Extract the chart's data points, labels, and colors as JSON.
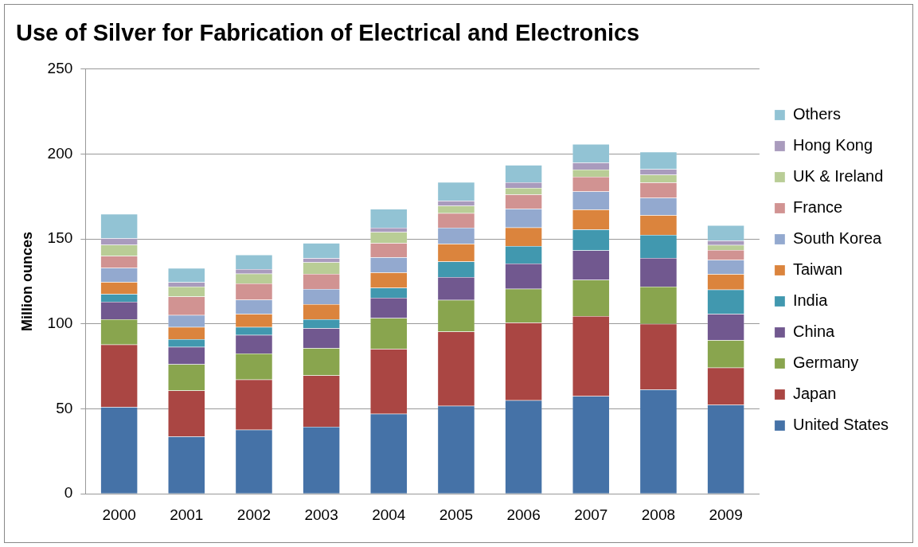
{
  "chart_data": {
    "type": "bar",
    "title": "Use of Silver for Fabrication of Electrical and Electronics",
    "ylabel": "Million ounces",
    "categories": [
      "2000",
      "2001",
      "2002",
      "2003",
      "2004",
      "2005",
      "2006",
      "2007",
      "2008",
      "2009"
    ],
    "stacked": true,
    "ylim": [
      0,
      250
    ],
    "yticks": [
      0,
      50,
      100,
      150,
      200,
      250
    ],
    "grid": "y",
    "legend": "right",
    "series": [
      {
        "name": "United States",
        "color": "#4572a7",
        "values": [
          51.1,
          33.7,
          37.7,
          39.5,
          47.1,
          51.8,
          55.0,
          57.5,
          61.4,
          52.3
        ]
      },
      {
        "name": "Japan",
        "color": "#aa4643",
        "values": [
          36.8,
          27.1,
          29.5,
          30.2,
          38.2,
          43.7,
          45.8,
          47.1,
          38.7,
          22.0
        ]
      },
      {
        "name": "Germany",
        "color": "#89a54e",
        "values": [
          14.8,
          15.4,
          15.4,
          16.1,
          18.1,
          18.6,
          19.9,
          21.3,
          21.9,
          16.1
        ]
      },
      {
        "name": "China",
        "color": "#71588f",
        "values": [
          10.4,
          10.2,
          10.9,
          11.7,
          12.0,
          13.5,
          14.9,
          17.4,
          16.8,
          15.5
        ]
      },
      {
        "name": "India",
        "color": "#4198af",
        "values": [
          4.5,
          4.6,
          4.7,
          5.2,
          5.9,
          9.1,
          10.3,
          12.3,
          13.6,
          14.3
        ]
      },
      {
        "name": "Taiwan",
        "color": "#db843d",
        "values": [
          7.0,
          7.2,
          7.7,
          9.0,
          9.0,
          10.4,
          10.8,
          11.7,
          11.6,
          9.1
        ]
      },
      {
        "name": "South Korea",
        "color": "#93a9cf",
        "values": [
          8.4,
          7.0,
          8.3,
          8.9,
          8.9,
          9.5,
          11.1,
          10.7,
          10.2,
          8.3
        ]
      },
      {
        "name": "France",
        "color": "#d19392",
        "values": [
          7.0,
          10.9,
          9.6,
          8.9,
          8.4,
          8.6,
          8.4,
          8.6,
          9.0,
          5.9
        ]
      },
      {
        "name": "UK & Ireland",
        "color": "#b9cd96",
        "values": [
          6.6,
          5.8,
          5.8,
          6.7,
          6.5,
          4.3,
          3.9,
          4.3,
          4.6,
          3.0
        ]
      },
      {
        "name": "Hong Kong",
        "color": "#a99bbd",
        "values": [
          3.8,
          2.6,
          2.7,
          2.5,
          2.5,
          3.0,
          3.3,
          4.1,
          3.3,
          2.5
        ]
      },
      {
        "name": "Others",
        "color": "#92c3d4",
        "values": [
          14.3,
          8.3,
          8.4,
          8.9,
          11.1,
          11.0,
          10.2,
          10.9,
          10.2,
          9.1
        ]
      }
    ]
  }
}
